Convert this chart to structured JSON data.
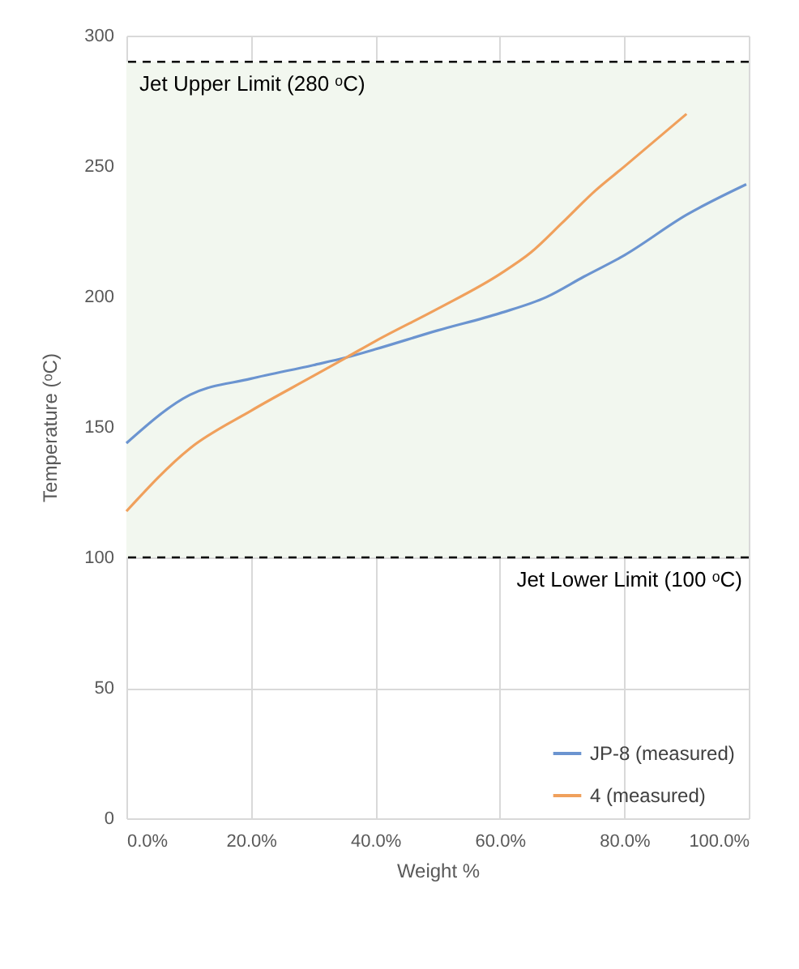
{
  "chart_data": {
    "type": "line",
    "xlabel": "Weight %",
    "ylabel": "Temperature (ᵒC)",
    "x": [
      0,
      10.2,
      20,
      30,
      35.4,
      40,
      50,
      60,
      67.5,
      73.5,
      80,
      90,
      99.6
    ],
    "series": [
      {
        "name": "JP-8 (measured)",
        "color": "#6b94d0",
        "values": [
          143.8,
          162.3,
          168.5,
          173.7,
          176.7,
          179.8,
          187,
          193.6,
          199.8,
          207.6,
          215.8,
          231.3,
          243
        ]
      },
      {
        "name": "4 (measured)",
        "color": "#f0a05c",
        "x": [
          0,
          10.2,
          20,
          30,
          35.4,
          40,
          50,
          60,
          65,
          70,
          75.3,
          80,
          90
        ],
        "values": [
          117.7,
          141.8,
          156.2,
          169.5,
          176.7,
          182.9,
          195.3,
          208.6,
          216.9,
          228.2,
          240.5,
          249.8,
          270
        ]
      }
    ],
    "xlim": [
      0,
      100
    ],
    "ylim": [
      0,
      300
    ],
    "xticks": [
      {
        "value": 0,
        "label": "0.0%"
      },
      {
        "value": 20,
        "label": "20.0%"
      },
      {
        "value": 40,
        "label": "40.0%"
      },
      {
        "value": 60,
        "label": "60.0%"
      },
      {
        "value": 80,
        "label": "80.0%"
      },
      {
        "value": 100,
        "label": "100.0%"
      }
    ],
    "yticks": [
      0,
      50,
      100,
      150,
      200,
      250,
      300
    ],
    "ref_lines": [
      {
        "axis": "y",
        "value": 290,
        "label": "Jet Upper Limit (280 ᵒC)",
        "color": "#000000",
        "line_style": "dashed"
      },
      {
        "axis": "y",
        "value": 100,
        "label": "Jet Lower Limit (100 ᵒC)",
        "color": "#000000",
        "line_style": "dashed"
      }
    ],
    "bands": [
      {
        "axis": "y",
        "from": 100,
        "to": 290,
        "color": "#f2f7ef"
      }
    ],
    "grid": true,
    "legend": "bottom right",
    "marker": "none",
    "line_style": "solid"
  }
}
